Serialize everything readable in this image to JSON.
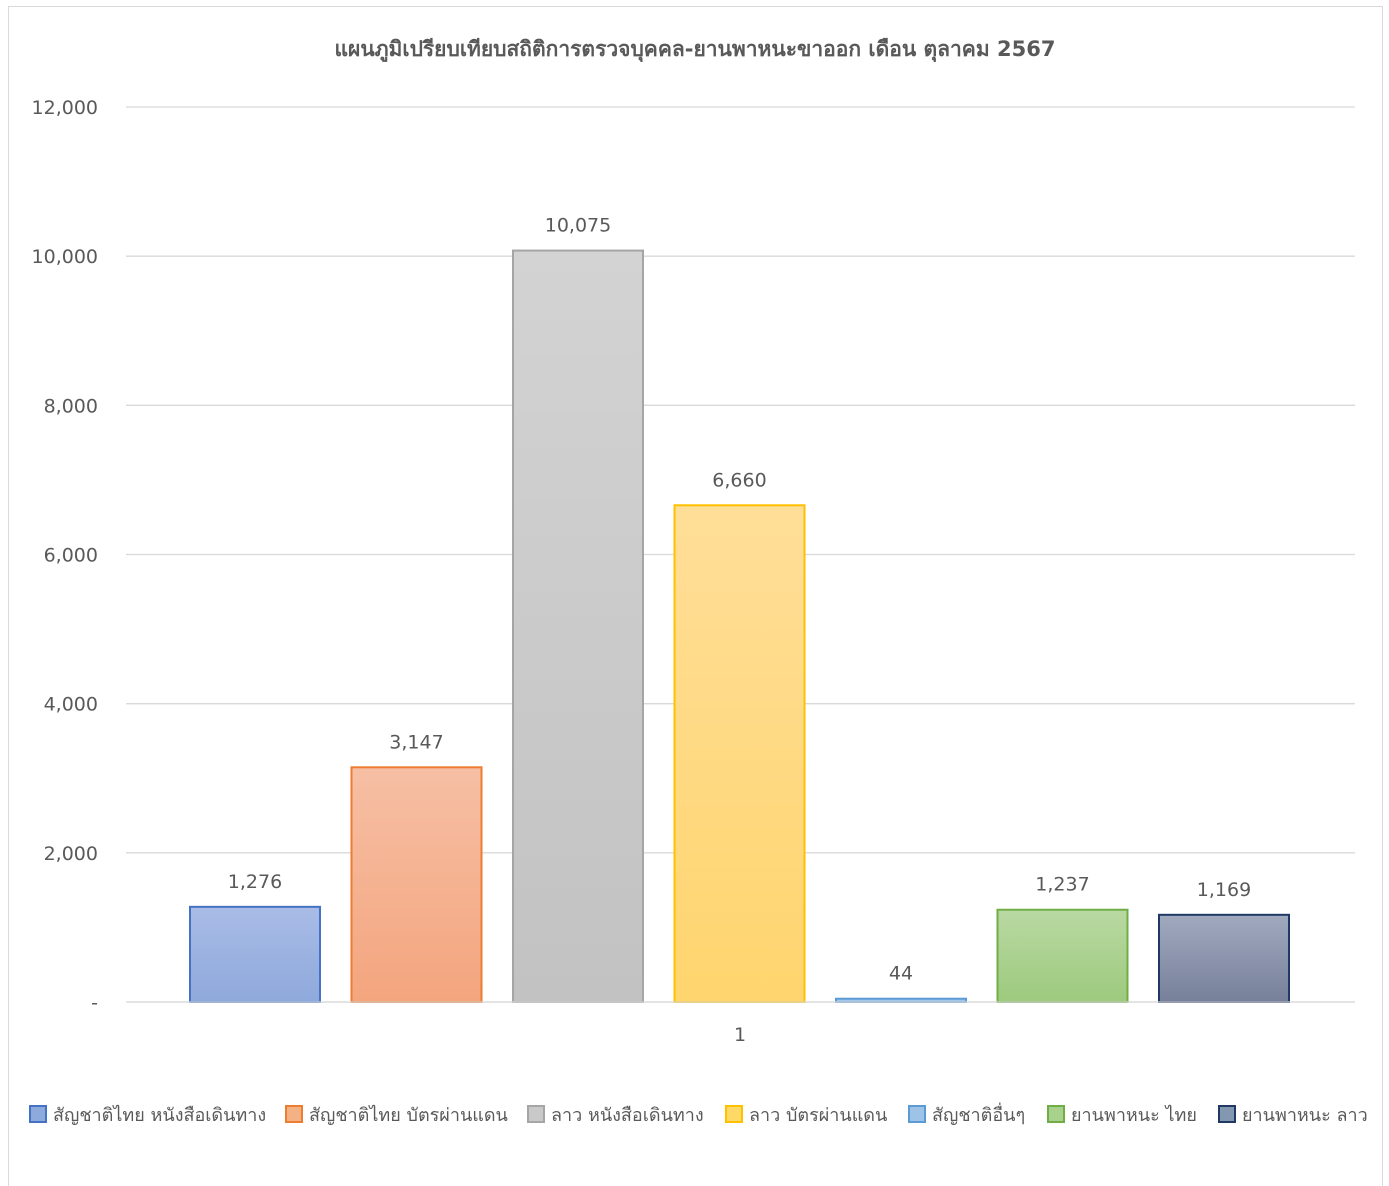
{
  "chart_data": {
    "type": "bar",
    "title": "แผนภูมิเปรียบเทียบสถิติการตรวจบุคคล-ยานพาหนะขาออก เดือน ตุลาคม 2567",
    "categories": [
      "1"
    ],
    "ylim": [
      0,
      12000
    ],
    "yticks": [
      0,
      2000,
      4000,
      6000,
      8000,
      10000,
      12000
    ],
    "ytick_labels": [
      "-",
      "2,000",
      "4,000",
      "6,000",
      "8,000",
      "10,000",
      "12,000"
    ],
    "grid": true,
    "legend_position": "bottom",
    "series": [
      {
        "name": "สัญชาติไทย หนังสือเดินทาง",
        "values": [
          1276
        ],
        "label": "1,276",
        "color": "#8EA9DB",
        "border": "#4472C4",
        "top_color": "#A9BCE6",
        "bottom_color": "#8EA9DB"
      },
      {
        "name": "สัญชาติไทย บัตรผ่านแดน",
        "values": [
          3147
        ],
        "label": "3,147",
        "color": "#F4B183",
        "border": "#ED7D31",
        "top_color": "#F6BFA4",
        "bottom_color": "#F4A57E"
      },
      {
        "name": "ลาว หนังสือเดินทาง",
        "values": [
          10075
        ],
        "label": "10,075",
        "color": "#C9C9C9",
        "border": "#A5A5A5",
        "top_color": "#D3D3D3",
        "bottom_color": "#C2C2C2"
      },
      {
        "name": "ลาว บัตรผ่านแดน",
        "values": [
          6660
        ],
        "label": "6,660",
        "color": "#FFD966",
        "border": "#FFC000",
        "top_color": "#FFDE98",
        "bottom_color": "#FFD56E"
      },
      {
        "name": "สัญชาติอื่นๆ",
        "values": [
          44
        ],
        "label": "44",
        "color": "#9DC3E6",
        "border": "#5B9BD5",
        "top_color": "#A8CCEB",
        "bottom_color": "#9DC3E6"
      },
      {
        "name": "ยานพาหนะ ไทย",
        "values": [
          1237
        ],
        "label": "1,237",
        "color": "#A9D18E",
        "border": "#70AD47",
        "top_color": "#B9D9A3",
        "bottom_color": "#9DCA7E"
      },
      {
        "name": "ยานพาหนะ ลาว",
        "values": [
          1169
        ],
        "label": "1,169",
        "color": "#8497B0",
        "border": "#203864",
        "top_color": "#A0A9BE",
        "bottom_color": "#77809A"
      }
    ]
  }
}
